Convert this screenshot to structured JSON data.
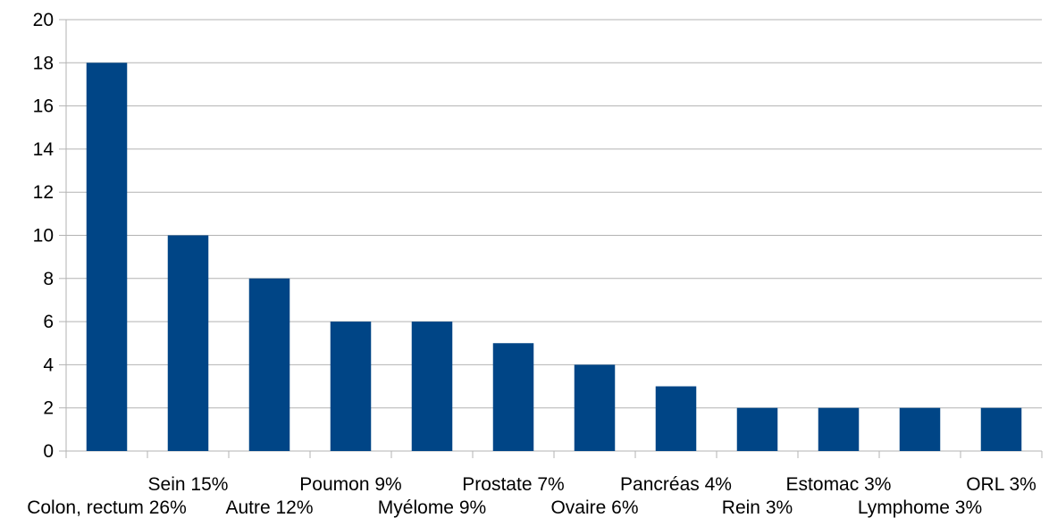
{
  "chart_data": {
    "type": "bar",
    "title": "",
    "xlabel": "",
    "ylabel": "",
    "categories": [
      "Colon, rectum 26%",
      "Sein 15%",
      "Autre 12%",
      "Poumon 9%",
      "Myélome 9%",
      "Prostate 7%",
      "Ovaire 6%",
      "Pancréas 4%",
      "Rein 3%",
      "Estomac 3%",
      "Lymphome 3%",
      "ORL 3%"
    ],
    "values": [
      18,
      10,
      8,
      6,
      6,
      5,
      4,
      3,
      2,
      2,
      2,
      2
    ],
    "ylim": [
      0,
      20
    ],
    "yticks": [
      "0",
      "2",
      "4",
      "6",
      "8",
      "10",
      "12",
      "14",
      "16",
      "18",
      "20"
    ],
    "grid": true,
    "legend": "none",
    "colors": {
      "bar": "#004586",
      "grid": "#b3b3b3",
      "axis": "#b3b3b3",
      "text": "#000000"
    }
  }
}
